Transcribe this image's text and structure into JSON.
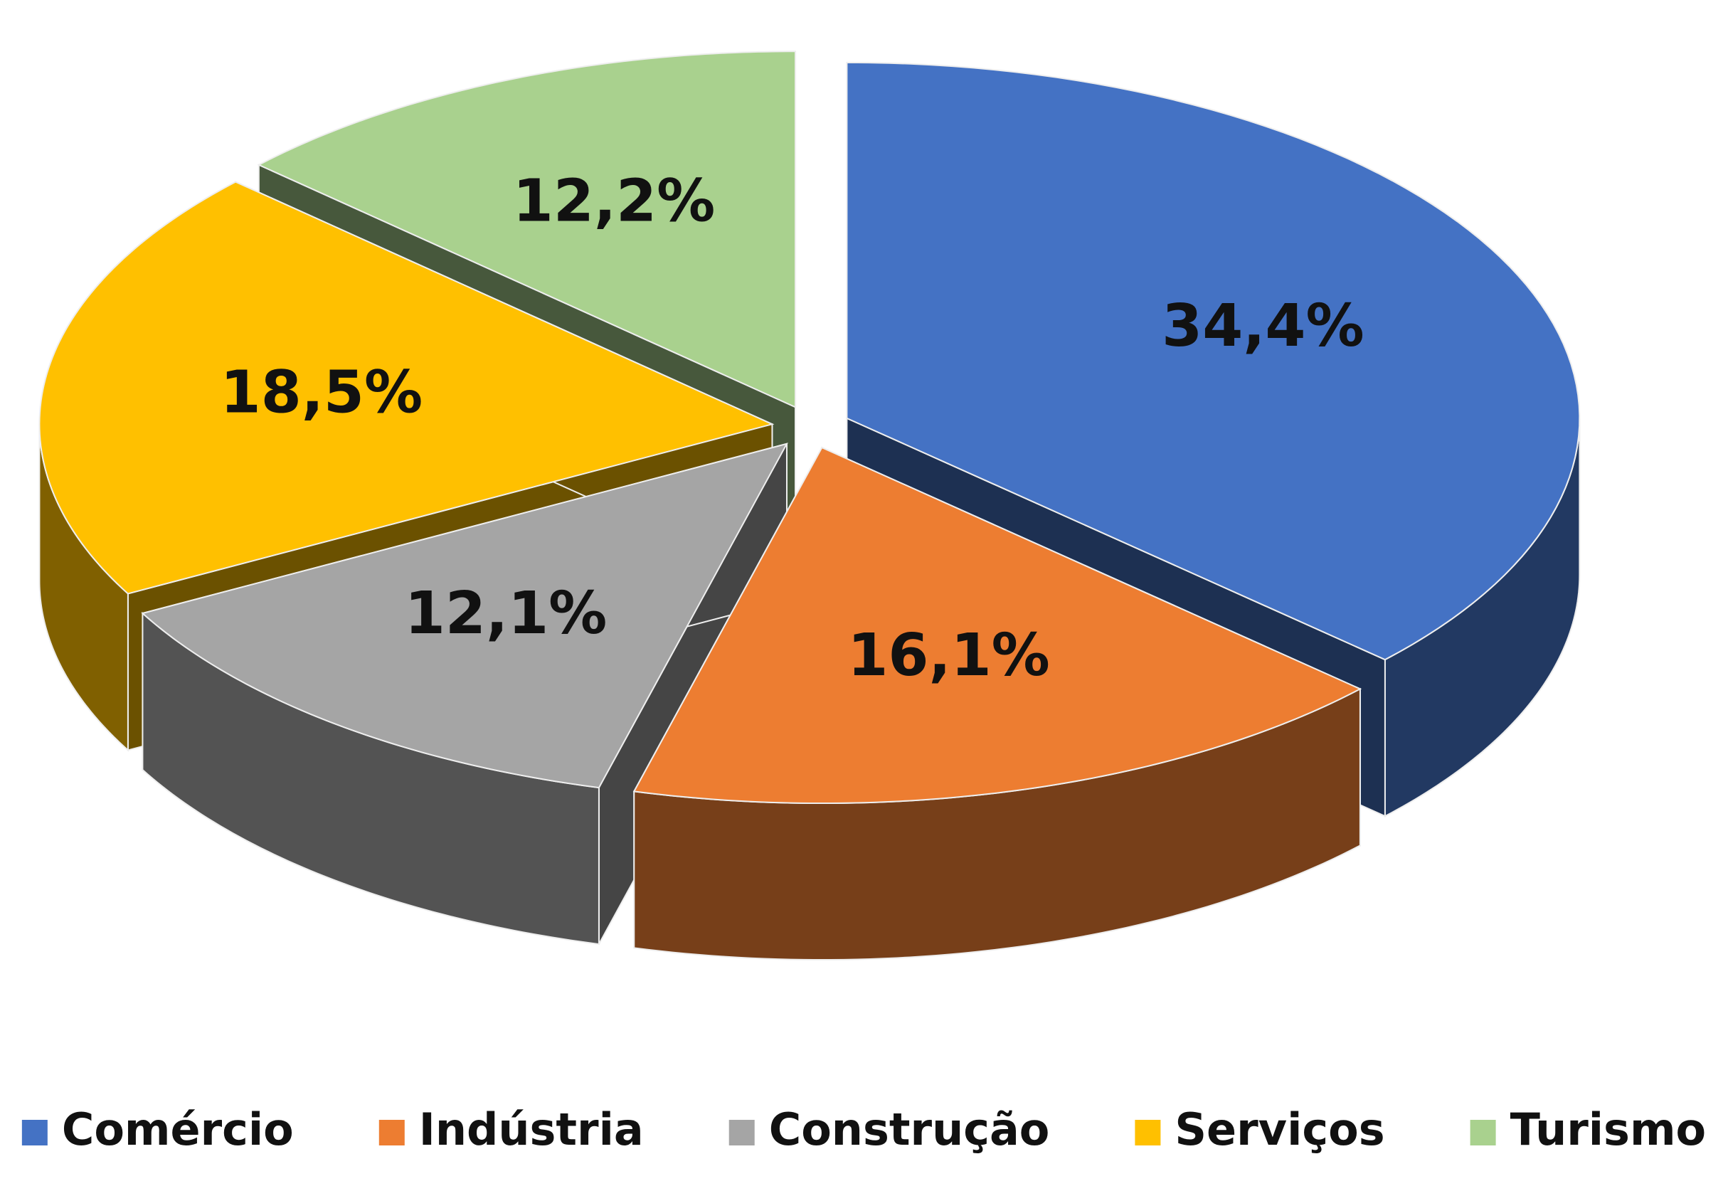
{
  "chart_data": {
    "type": "pie3d",
    "categories": [
      "Comércio",
      "Indústria",
      "Construção",
      "Serviços",
      "Turismo"
    ],
    "values": [
      34.4,
      16.1,
      12.1,
      18.5,
      12.2
    ],
    "value_labels": [
      "34,4%",
      "16,1%",
      "12,1%",
      "18,5%",
      "12,2%"
    ],
    "colors": [
      "#4472c4",
      "#ed7d31",
      "#a5a5a5",
      "#ffc000",
      "#a9d18e"
    ],
    "legend": "bottom"
  }
}
